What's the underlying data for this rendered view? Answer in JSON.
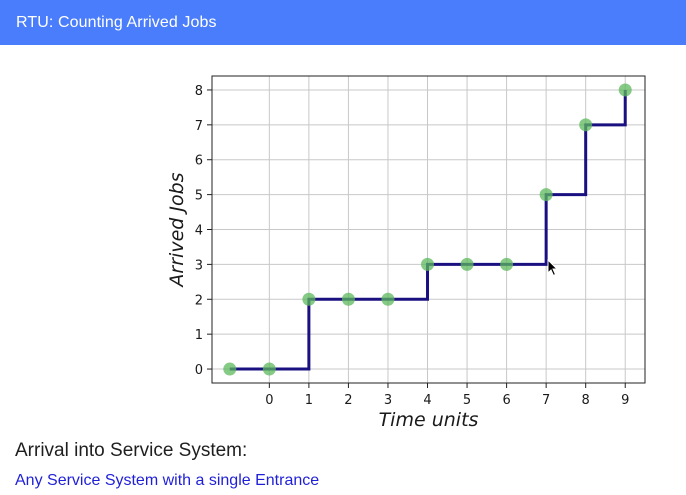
{
  "window": {
    "title": "RTU: Counting Arrived Jobs"
  },
  "chart_data": {
    "type": "line",
    "step": "post",
    "title": "",
    "xlabel": "Time units",
    "ylabel": "Arrived Jobs",
    "x_ticks": [
      0,
      1,
      2,
      3,
      4,
      5,
      6,
      7,
      8,
      9
    ],
    "y_ticks": [
      0,
      1,
      2,
      3,
      4,
      5,
      6,
      7,
      8
    ],
    "xlim": [
      -1.45,
      9.5
    ],
    "ylim": [
      -0.4,
      8.4
    ],
    "grid": true,
    "step_points": [
      {
        "x": -1,
        "y": 0
      },
      {
        "x": 1,
        "y": 2
      },
      {
        "x": 4,
        "y": 3
      },
      {
        "x": 7,
        "y": 5
      },
      {
        "x": 8,
        "y": 7
      },
      {
        "x": 9,
        "y": 8
      }
    ],
    "markers": [
      {
        "x": -1,
        "y": 0
      },
      {
        "x": 0,
        "y": 0
      },
      {
        "x": 1,
        "y": 2
      },
      {
        "x": 2,
        "y": 2
      },
      {
        "x": 3,
        "y": 2
      },
      {
        "x": 4,
        "y": 3
      },
      {
        "x": 5,
        "y": 3
      },
      {
        "x": 6,
        "y": 3
      },
      {
        "x": 7,
        "y": 5
      },
      {
        "x": 8,
        "y": 7
      },
      {
        "x": 9,
        "y": 8
      }
    ],
    "line_color": "#1a1080",
    "marker_color": "#5cb85c"
  },
  "content": {
    "heading": "Arrival into Service System:",
    "link_text": "Any Service System with a single Entrance"
  },
  "cursor_icon": "arrow-cursor-icon"
}
